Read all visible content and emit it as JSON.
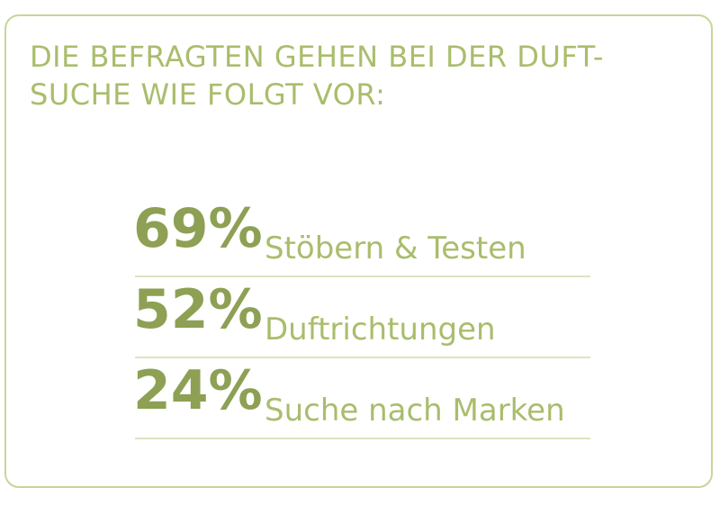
{
  "heading": {
    "line1": "DIE BEFRAGTEN GEHEN BEI DER DUFT-",
    "line2": "SUCHE WIE FOLGT VOR:"
  },
  "stats": [
    {
      "value": "69%",
      "label": "Stöbern & Testen"
    },
    {
      "value": "52%",
      "label": "Duftrichtungen"
    },
    {
      "value": "24%",
      "label": "Suche nach Marken"
    }
  ],
  "colors": {
    "border": "#c5d69b",
    "heading": "#a9bd6c",
    "value": "#8da054",
    "label": "#a9bd6c",
    "rule": "#dbe4c1"
  }
}
